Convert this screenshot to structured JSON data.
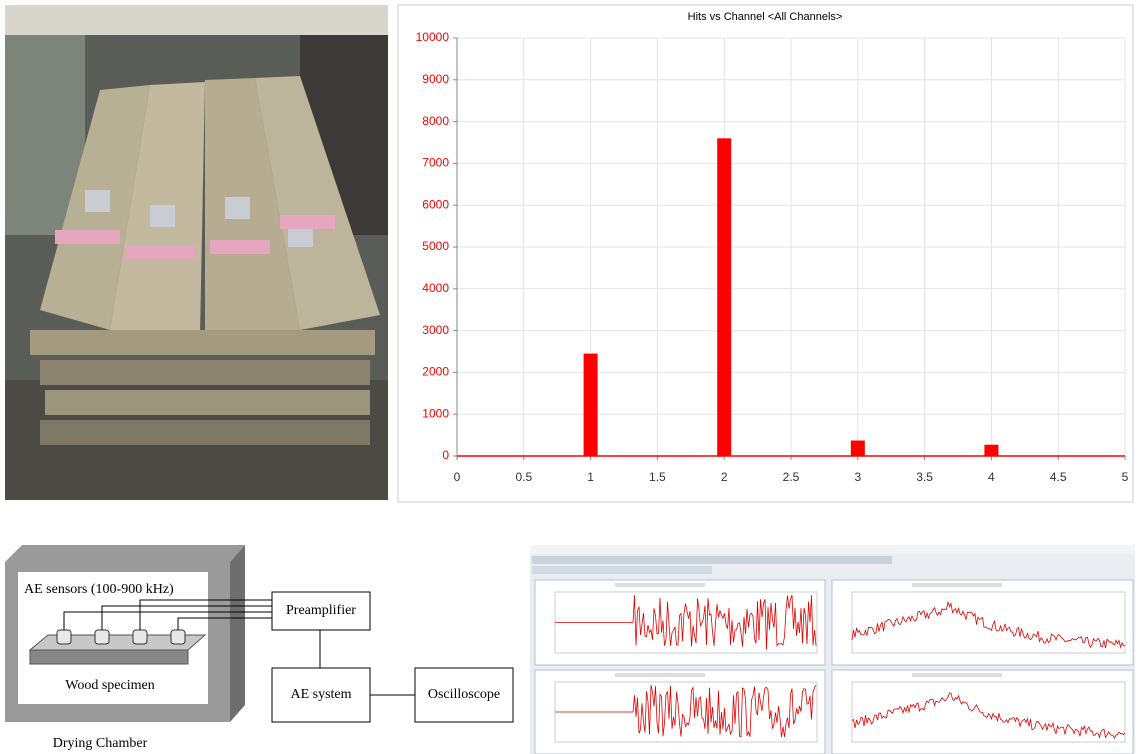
{
  "chart_data": {
    "type": "bar",
    "title": "Hits vs Channel <All Channels>",
    "x": [
      1,
      2,
      3,
      4
    ],
    "values": [
      2450,
      7600,
      370,
      270
    ],
    "color": "#ff0000",
    "xlim": [
      0,
      5
    ],
    "xticks": [
      0,
      0.5,
      1,
      1.5,
      2,
      2.5,
      3,
      3.5,
      4,
      4.5,
      5
    ],
    "ylim": [
      0,
      10000
    ],
    "yticks": [
      0,
      1000,
      2000,
      3000,
      4000,
      5000,
      6000,
      7000,
      8000,
      9000,
      10000
    ],
    "grid": true
  },
  "diagram": {
    "sensors": "AE sensors (100-900 kHz)",
    "specimen": "Wood specimen",
    "chamber": "Drying Chamber",
    "preamplifier": "Preamplifier",
    "ae_system": "AE system",
    "oscilloscope": "Oscilloscope"
  }
}
